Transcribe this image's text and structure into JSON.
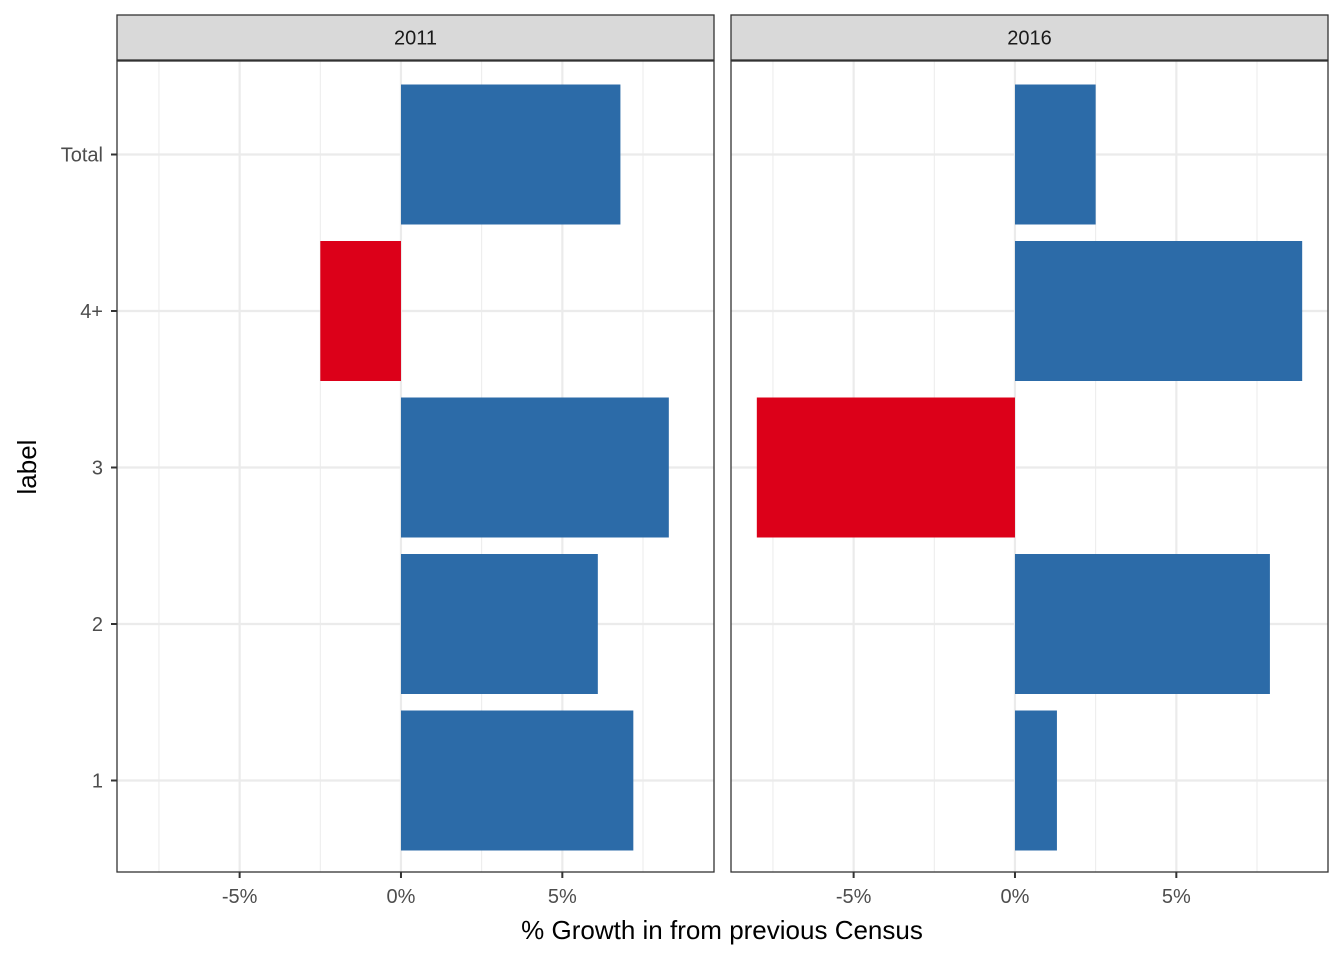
{
  "chart_data": {
    "type": "bar",
    "orientation": "horizontal",
    "xlabel": "% Growth in from previous Census",
    "ylabel": "label",
    "categories": [
      "1",
      "2",
      "3",
      "4+",
      "Total"
    ],
    "x_ticks": [
      -5,
      0,
      5
    ],
    "x_tick_labels": [
      "-5%",
      "0%",
      "5%"
    ],
    "xlim": [
      -8.8,
      9.7
    ],
    "grid": true,
    "legend": "none",
    "colors": {
      "positive": "#2c6ba8",
      "negative": "#dc0019"
    },
    "panels": [
      {
        "title": "2011",
        "values": {
          "1": 7.2,
          "2": 6.1,
          "3": 8.3,
          "4+": -2.5,
          "Total": 6.8
        }
      },
      {
        "title": "2016",
        "values": {
          "1": 1.3,
          "2": 7.9,
          "3": -8.0,
          "4+": 8.9,
          "Total": 2.5
        }
      }
    ]
  }
}
